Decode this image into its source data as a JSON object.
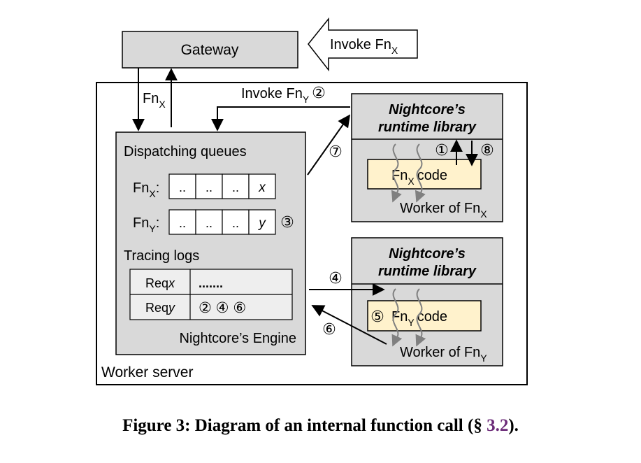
{
  "gateway": {
    "label": "Gateway"
  },
  "external_invoke": {
    "text": "Invoke Fn",
    "sub": "X"
  },
  "gateway_link": {
    "text": "Fn",
    "sub": "X"
  },
  "internal_invoke": {
    "text": "Invoke Fn",
    "sub": "Y",
    "step": "②"
  },
  "engine": {
    "dispatching_title": "Dispatching queues",
    "queues": [
      {
        "name": "Fn",
        "sub": "X",
        "colon": ":",
        "cells": [
          "..",
          "..",
          "..",
          "x"
        ]
      },
      {
        "name": "Fn",
        "sub": "Y",
        "colon": ":",
        "cells": [
          "..",
          "..",
          "..",
          "y"
        ],
        "step": "③"
      }
    ],
    "tracing_title": "Tracing logs",
    "logs": [
      {
        "req": "Req",
        "var": "x",
        "value": "......."
      },
      {
        "req": "Req",
        "var": "y",
        "value": "② ④ ⑥"
      }
    ],
    "label": "Nightcore’s Engine"
  },
  "worker_server_label": "Worker server",
  "worker_x": {
    "runtime_line1": "Nightcore’s",
    "runtime_line2": "runtime library",
    "code_name": "Fn",
    "code_sub": "X",
    "code_label": "code",
    "worker_label": "Worker of Fn",
    "worker_sub": "X",
    "steps": [
      "①",
      "⑧"
    ]
  },
  "worker_y": {
    "runtime_line1": "Nightcore’s",
    "runtime_line2": "runtime library",
    "code_name": "Fn",
    "code_sub": "Y",
    "code_label": "code",
    "worker_label": "Worker of Fn",
    "worker_sub": "Y",
    "step": "⑤"
  },
  "arrow_steps": {
    "s7": "⑦",
    "s4": "④",
    "s6": "⑥"
  },
  "caption": {
    "prefix": "Figure 3: Diagram of an internal function call (§ ",
    "ref": "3.2",
    "suffix": ")."
  },
  "colors": {
    "box_fill": "#d9d9d9",
    "code_fill": "#fff2cc",
    "thread": "#808080",
    "cell_fill": "#ffffff"
  }
}
